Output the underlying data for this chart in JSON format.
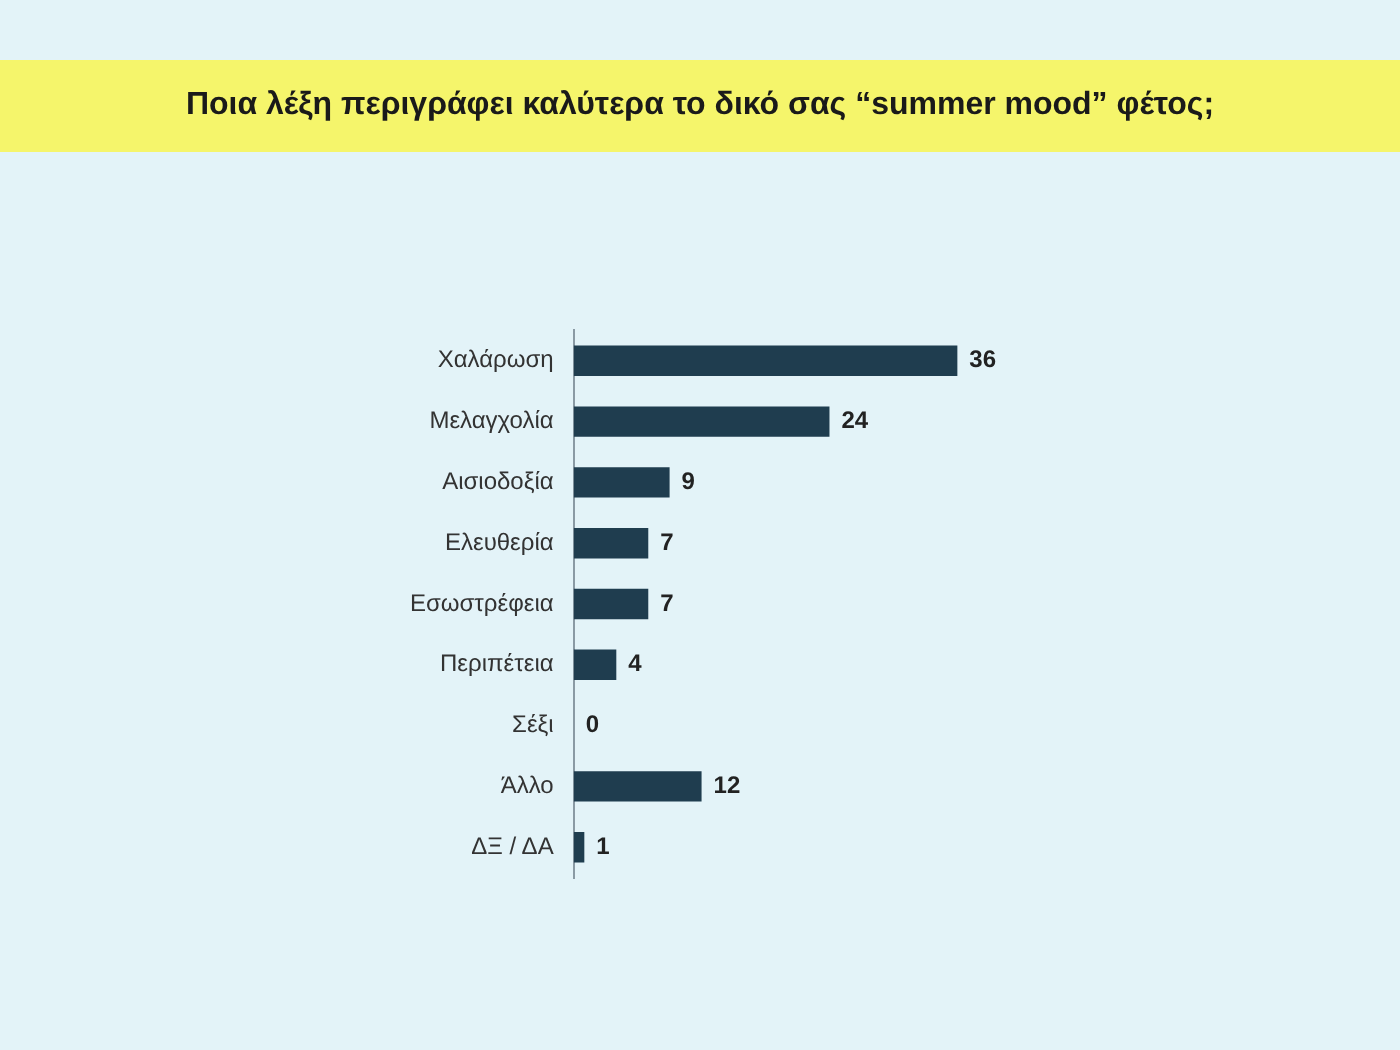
{
  "chart_data": {
    "type": "bar",
    "orientation": "horizontal",
    "title": "Ποια λέξη περιγράφει καλύτερα το δικό σας “summer mood” φέτος;",
    "categories": [
      "Χαλάρωση",
      "Μελαγχολία",
      "Αισιοδοξία",
      "Ελευθερία",
      "Εσωστρέφεια",
      "Περιπέτεια",
      "Σέξι",
      "Άλλο",
      "ΔΞ / ΔΑ"
    ],
    "values": [
      36,
      24,
      9,
      7,
      7,
      4,
      0,
      12,
      1
    ],
    "color": "#1f3d4f",
    "data_labels": true,
    "tick_labels": "y"
  }
}
